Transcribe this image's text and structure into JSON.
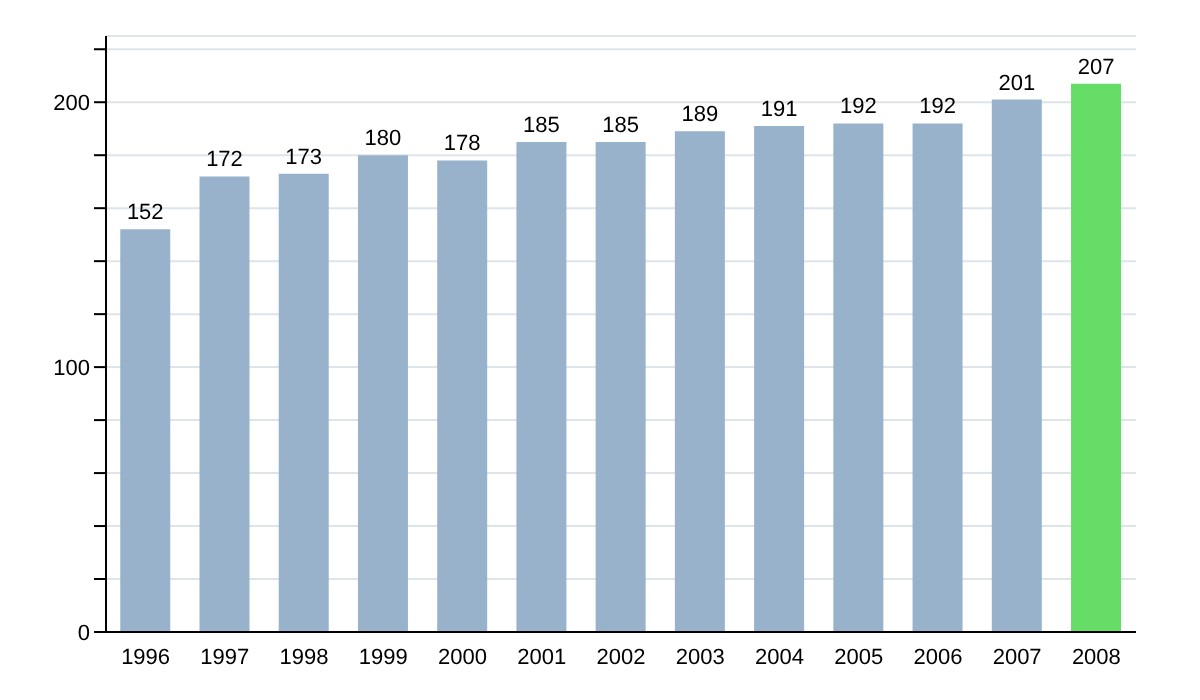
{
  "chart_data": {
    "type": "bar",
    "categories": [
      "1996",
      "1997",
      "1998",
      "1999",
      "2000",
      "2001",
      "2002",
      "2003",
      "2004",
      "2005",
      "2006",
      "2007",
      "2008"
    ],
    "values": [
      152,
      172,
      173,
      180,
      178,
      185,
      185,
      189,
      191,
      192,
      192,
      201,
      207
    ],
    "colors": [
      "#98b2cc",
      "#98b2cc",
      "#98b2cc",
      "#98b2cc",
      "#98b2cc",
      "#98b2cc",
      "#98b2cc",
      "#98b2cc",
      "#98b2cc",
      "#98b2cc",
      "#98b2cc",
      "#98b2cc",
      "#66dd66"
    ],
    "ylim": [
      0,
      225
    ],
    "yticks": [
      0,
      {
        "value": 20,
        "label": null
      },
      {
        "value": 40,
        "label": null
      },
      {
        "value": 60,
        "label": null
      },
      {
        "value": 80,
        "label": null
      },
      100,
      {
        "value": 120,
        "label": null
      },
      {
        "value": 140,
        "label": null
      },
      {
        "value": 160,
        "label": null
      },
      {
        "value": 180,
        "label": null
      },
      200,
      {
        "value": 220,
        "label": null
      }
    ],
    "grid": "y",
    "data_labels": true
  }
}
